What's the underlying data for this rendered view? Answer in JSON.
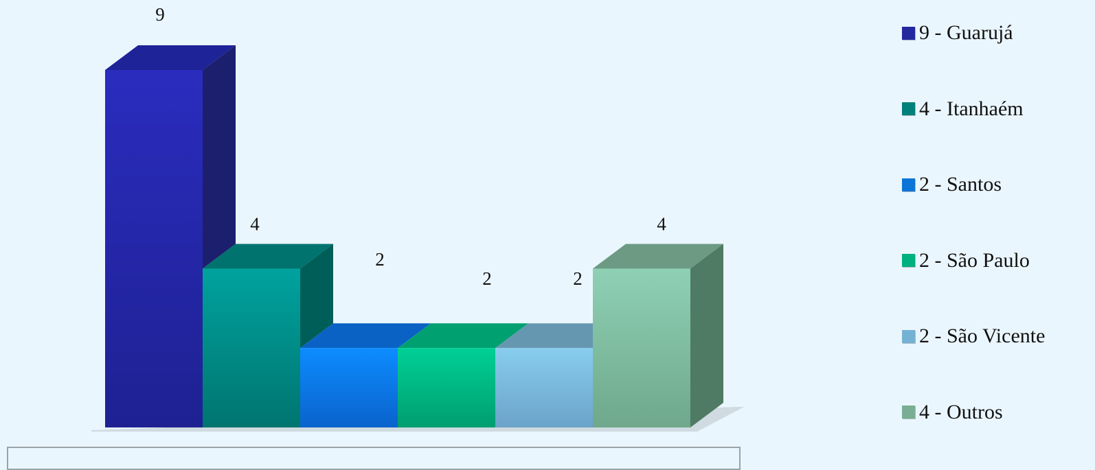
{
  "chart_data": {
    "type": "bar",
    "style": "3d-column",
    "categories": [
      "Guarujá",
      "Itanhaém",
      "Santos",
      "São Paulo",
      "São Vicente",
      "Outros"
    ],
    "values": [
      9,
      4,
      2,
      2,
      2,
      4
    ],
    "data_labels": [
      "9",
      "4",
      "2",
      "2",
      "2",
      "4"
    ],
    "ylim": [
      0,
      9
    ],
    "grid": false,
    "legend_position": "right",
    "colors": {
      "front_top": [
        "#2a2cbe",
        "#00a29e",
        "#0d8cff",
        "#00d096",
        "#88cdee",
        "#8fd0b4"
      ],
      "front_bottom": [
        "#1e2192",
        "#007570",
        "#0a63cc",
        "#009e70",
        "#6ba3c9",
        "#6fa88c"
      ],
      "side": [
        "#1c1f6e",
        "#005e59",
        "#0a4aa8",
        "#007d5b",
        "#5f94ad",
        "#4f7a63"
      ],
      "top": [
        "#1e2397",
        "#00736e",
        "#0a62c4",
        "#00a070",
        "#6598b0",
        "#6c9a82"
      ]
    }
  },
  "legend": [
    {
      "label": "9 - Guarujá",
      "color": "#24289f"
    },
    {
      "label": "4 - Itanhaém",
      "color": "#00807b"
    },
    {
      "label": "2 - Santos",
      "color": "#0d74d8"
    },
    {
      "label": "2 - São Paulo",
      "color": "#00b07e"
    },
    {
      "label": "2 - São Vicente",
      "color": "#74b2d4"
    },
    {
      "label": "4 - Outros",
      "color": "#79ae94"
    }
  ]
}
